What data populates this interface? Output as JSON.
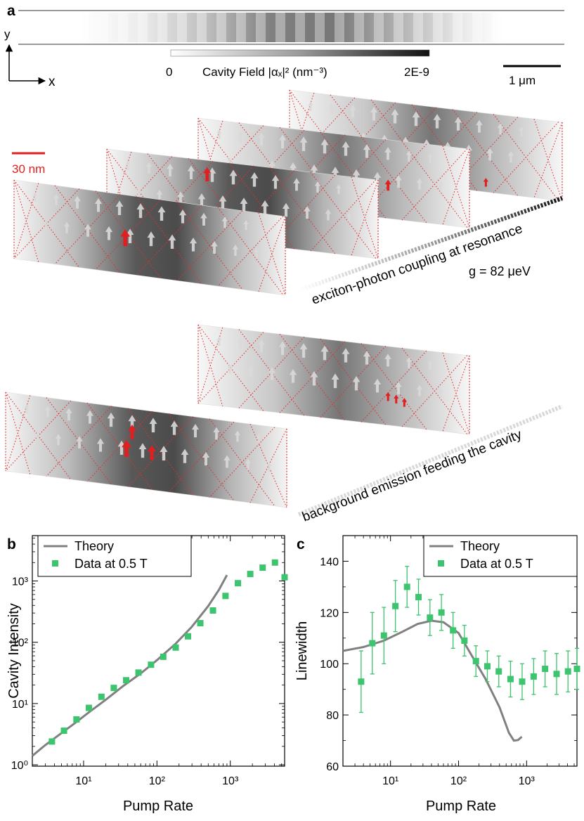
{
  "panel_a": {
    "letter": "a",
    "axes": {
      "y": "y",
      "x": "x"
    },
    "colorbar": {
      "min": "0",
      "max": "2E-9",
      "label": "Cavity Field |αₓ|² (nm⁻³)"
    },
    "scale_um": "1 μm",
    "scale_nm": "30 nm",
    "coupling_label": "exciton-photon coupling at resonance",
    "g_label": "g = 82 μeV",
    "background_label": "background emission feeding the cavity"
  },
  "chart_data": [
    {
      "type": "line",
      "panel": "b",
      "xlabel": "Pump Rate",
      "ylabel": "Cavity Intensity",
      "xscale": "log",
      "yscale": "log",
      "xlim": [
        2,
        5500
      ],
      "ylim": [
        0.95,
        5500
      ],
      "x_ticks": [
        "10¹",
        "10²",
        "10³"
      ],
      "y_ticks": [
        "10⁰",
        "10¹",
        "10²",
        "10³"
      ],
      "legend": "top-left",
      "series": [
        {
          "name": "Theory",
          "color": "#808080",
          "x": [
            2,
            3,
            5,
            8,
            12,
            20,
            35,
            60,
            100,
            180,
            300,
            500,
            700,
            900
          ],
          "y": [
            1.4,
            2.1,
            3.3,
            5.0,
            7.3,
            11.5,
            19.5,
            31,
            51,
            95,
            180,
            390,
            720,
            1250
          ]
        },
        {
          "name": "Data at 0.5 T",
          "color": "#3cc46e",
          "x": [
            3.7,
            5.4,
            8,
            11.8,
            17.5,
            25.8,
            38,
            56,
            83,
            122,
            180,
            265,
            390,
            580,
            860,
            1270,
            1870,
            2760,
            4060,
            5500
          ],
          "y": [
            2.4,
            3.6,
            5.5,
            8.5,
            12.9,
            18,
            24,
            32,
            43,
            58,
            82,
            125,
            205,
            330,
            570,
            920,
            1300,
            1650,
            2000,
            1150
          ]
        }
      ]
    },
    {
      "type": "line",
      "panel": "c",
      "xlabel": "Pump Rate",
      "ylabel": "Linewidth",
      "xscale": "log",
      "xlim": [
        2,
        5500
      ],
      "ylim": [
        60,
        150
      ],
      "x_ticks": [
        "10¹",
        "10²",
        "10³"
      ],
      "y_ticks": [
        "60",
        "80",
        "100",
        "120",
        "140"
      ],
      "legend": "top-right",
      "series": [
        {
          "name": "Theory",
          "color": "#808080",
          "x": [
            2,
            4,
            8,
            15,
            25,
            40,
            60,
            100,
            150,
            250,
            400,
            550,
            650,
            750,
            850
          ],
          "y": [
            105,
            106.5,
            109,
            112.5,
            115.5,
            116.8,
            116.2,
            112,
            104,
            94,
            83,
            73,
            70,
            70.2,
            71.5
          ]
        },
        {
          "name": "Data at 0.5 T",
          "color": "#3cc46e",
          "x": [
            3.7,
            5.4,
            8,
            11.8,
            17.5,
            25.8,
            38,
            56,
            83,
            122,
            180,
            265,
            390,
            580,
            860,
            1270,
            1870,
            2760,
            4060,
            5500
          ],
          "y": [
            93,
            108,
            111,
            122.5,
            130,
            126,
            118,
            120,
            113,
            109,
            101,
            99,
            97,
            94,
            93,
            95,
            98,
            96,
            97,
            98
          ],
          "err": [
            12,
            12,
            11,
            10,
            8,
            7,
            7,
            7,
            7,
            6,
            6,
            6,
            6,
            7,
            7,
            7,
            7,
            8,
            8,
            8
          ]
        }
      ]
    }
  ]
}
